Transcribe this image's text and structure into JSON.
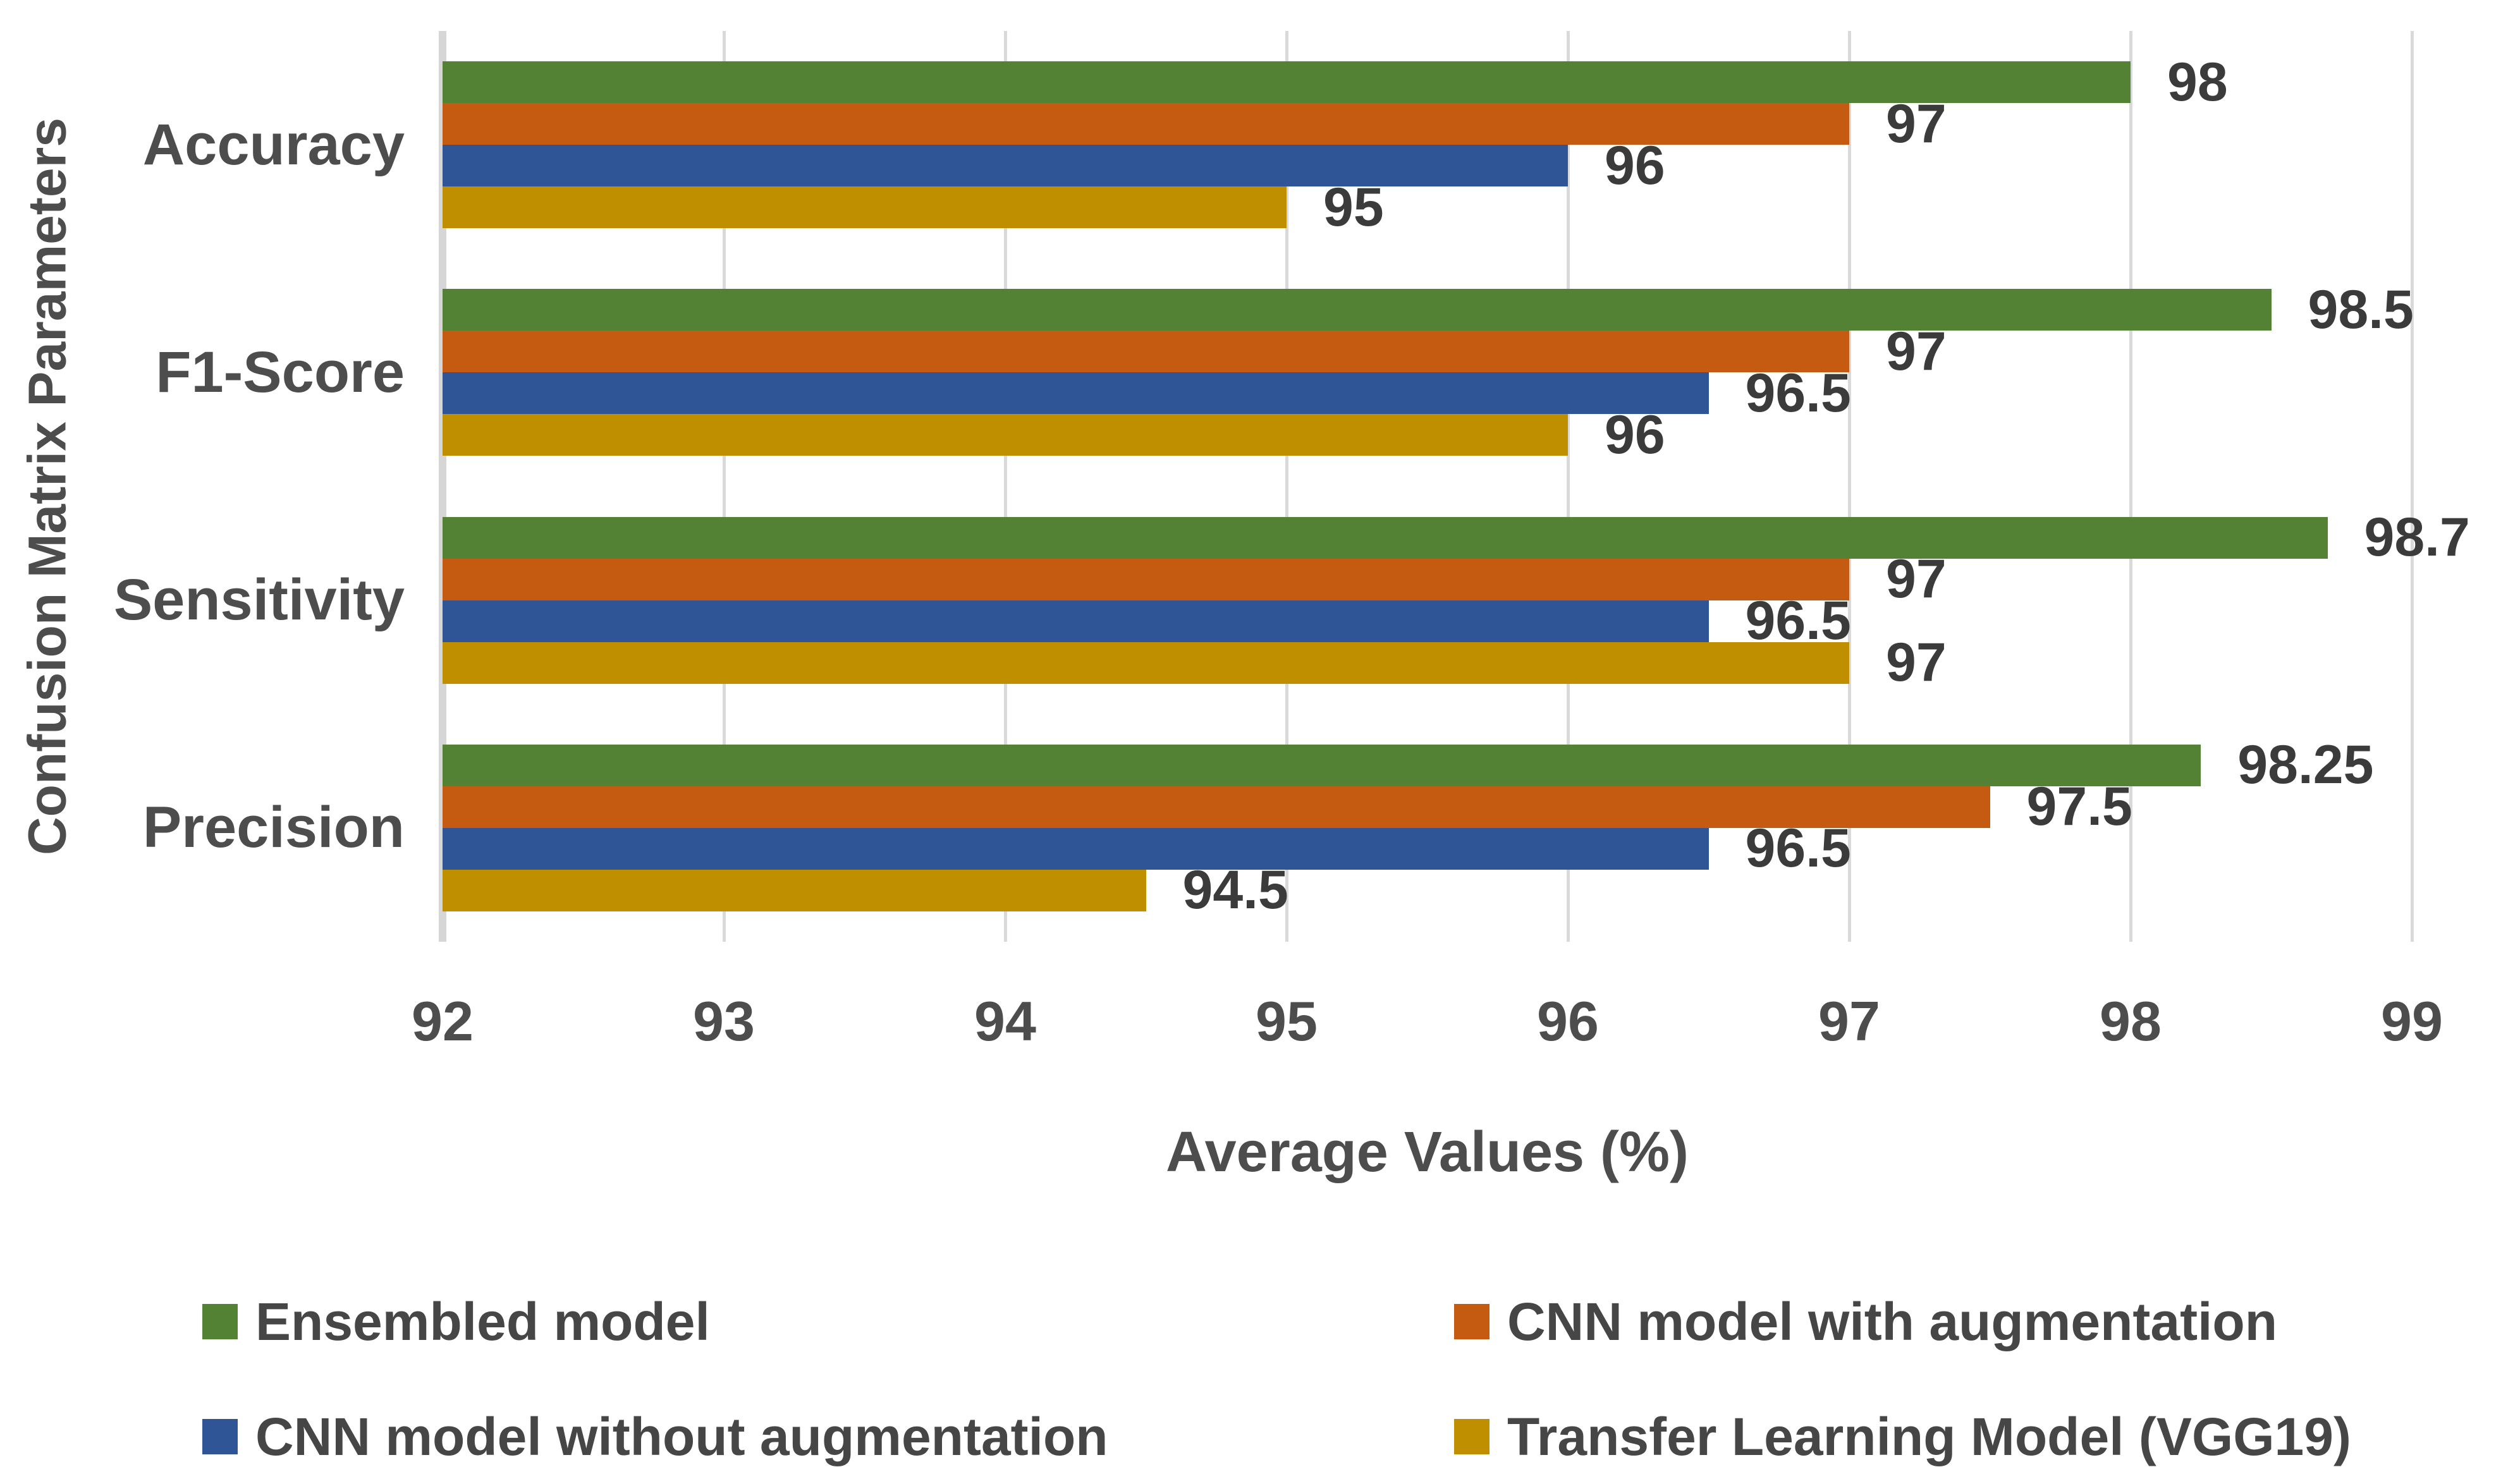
{
  "chart_data": {
    "type": "bar",
    "orientation": "horizontal-grouped",
    "categories": [
      "Accuracy",
      "F1-Score",
      "Sensitivity",
      "Precision"
    ],
    "series": [
      {
        "name": "Ensembled model",
        "color": "#548235",
        "values": [
          98,
          98.5,
          98.7,
          98.25
        ]
      },
      {
        "name": "CNN model with augmentation",
        "color": "#C55A11",
        "values": [
          97,
          97,
          97,
          97.5
        ]
      },
      {
        "name": "CNN model without augmentation",
        "color": "#2F5597",
        "values": [
          96,
          96.5,
          96.5,
          96.5
        ]
      },
      {
        "name": "Transfer Learning Model (VGG19)",
        "color": "#BF8F00",
        "values": [
          95,
          96,
          97,
          94.5
        ]
      }
    ],
    "data_labels": [
      [
        "98",
        "97",
        "96",
        "95"
      ],
      [
        "98.5",
        "97",
        "96.5",
        "96"
      ],
      [
        "98.7",
        "97",
        "96.5",
        "97"
      ],
      [
        "98.25",
        "97.5",
        "96.5",
        "94.5"
      ]
    ],
    "xlabel": "Average Values (%)",
    "ylabel": "Confusion Matrix Parameters",
    "xlim": [
      92,
      99
    ],
    "xticks": [
      "92",
      "93",
      "94",
      "95",
      "96",
      "97",
      "98",
      "99"
    ],
    "grid": true,
    "legend_position": "bottom",
    "data_labels_enabled": true
  },
  "colors": {
    "background": "#FFFFFF",
    "gridline": "#D9D9D9",
    "axis_line": "#D6D6D6",
    "axis_text": "#4D4D4D",
    "data_label_text": "#3B3B3B",
    "legend_text": "#464646"
  }
}
